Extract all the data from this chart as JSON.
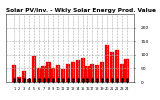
{
  "title": "Solar PV/Inv. - Wkly Solar Energy Prod. Value",
  "bar_values": [
    62,
    20,
    42,
    12,
    95,
    52,
    58,
    72,
    52,
    62,
    48,
    68,
    75,
    82,
    90,
    58,
    68,
    62,
    72,
    135,
    110,
    118,
    68,
    85
  ],
  "bar_color": "#ff0000",
  "marker_color": "#000000",
  "background_color": "#ffffff",
  "grid_color": "#aaaaaa",
  "ylim": [
    0,
    250
  ],
  "yticks": [
    0,
    50,
    100,
    150,
    200
  ],
  "title_fontsize": 4.2,
  "tick_fontsize": 3.2
}
